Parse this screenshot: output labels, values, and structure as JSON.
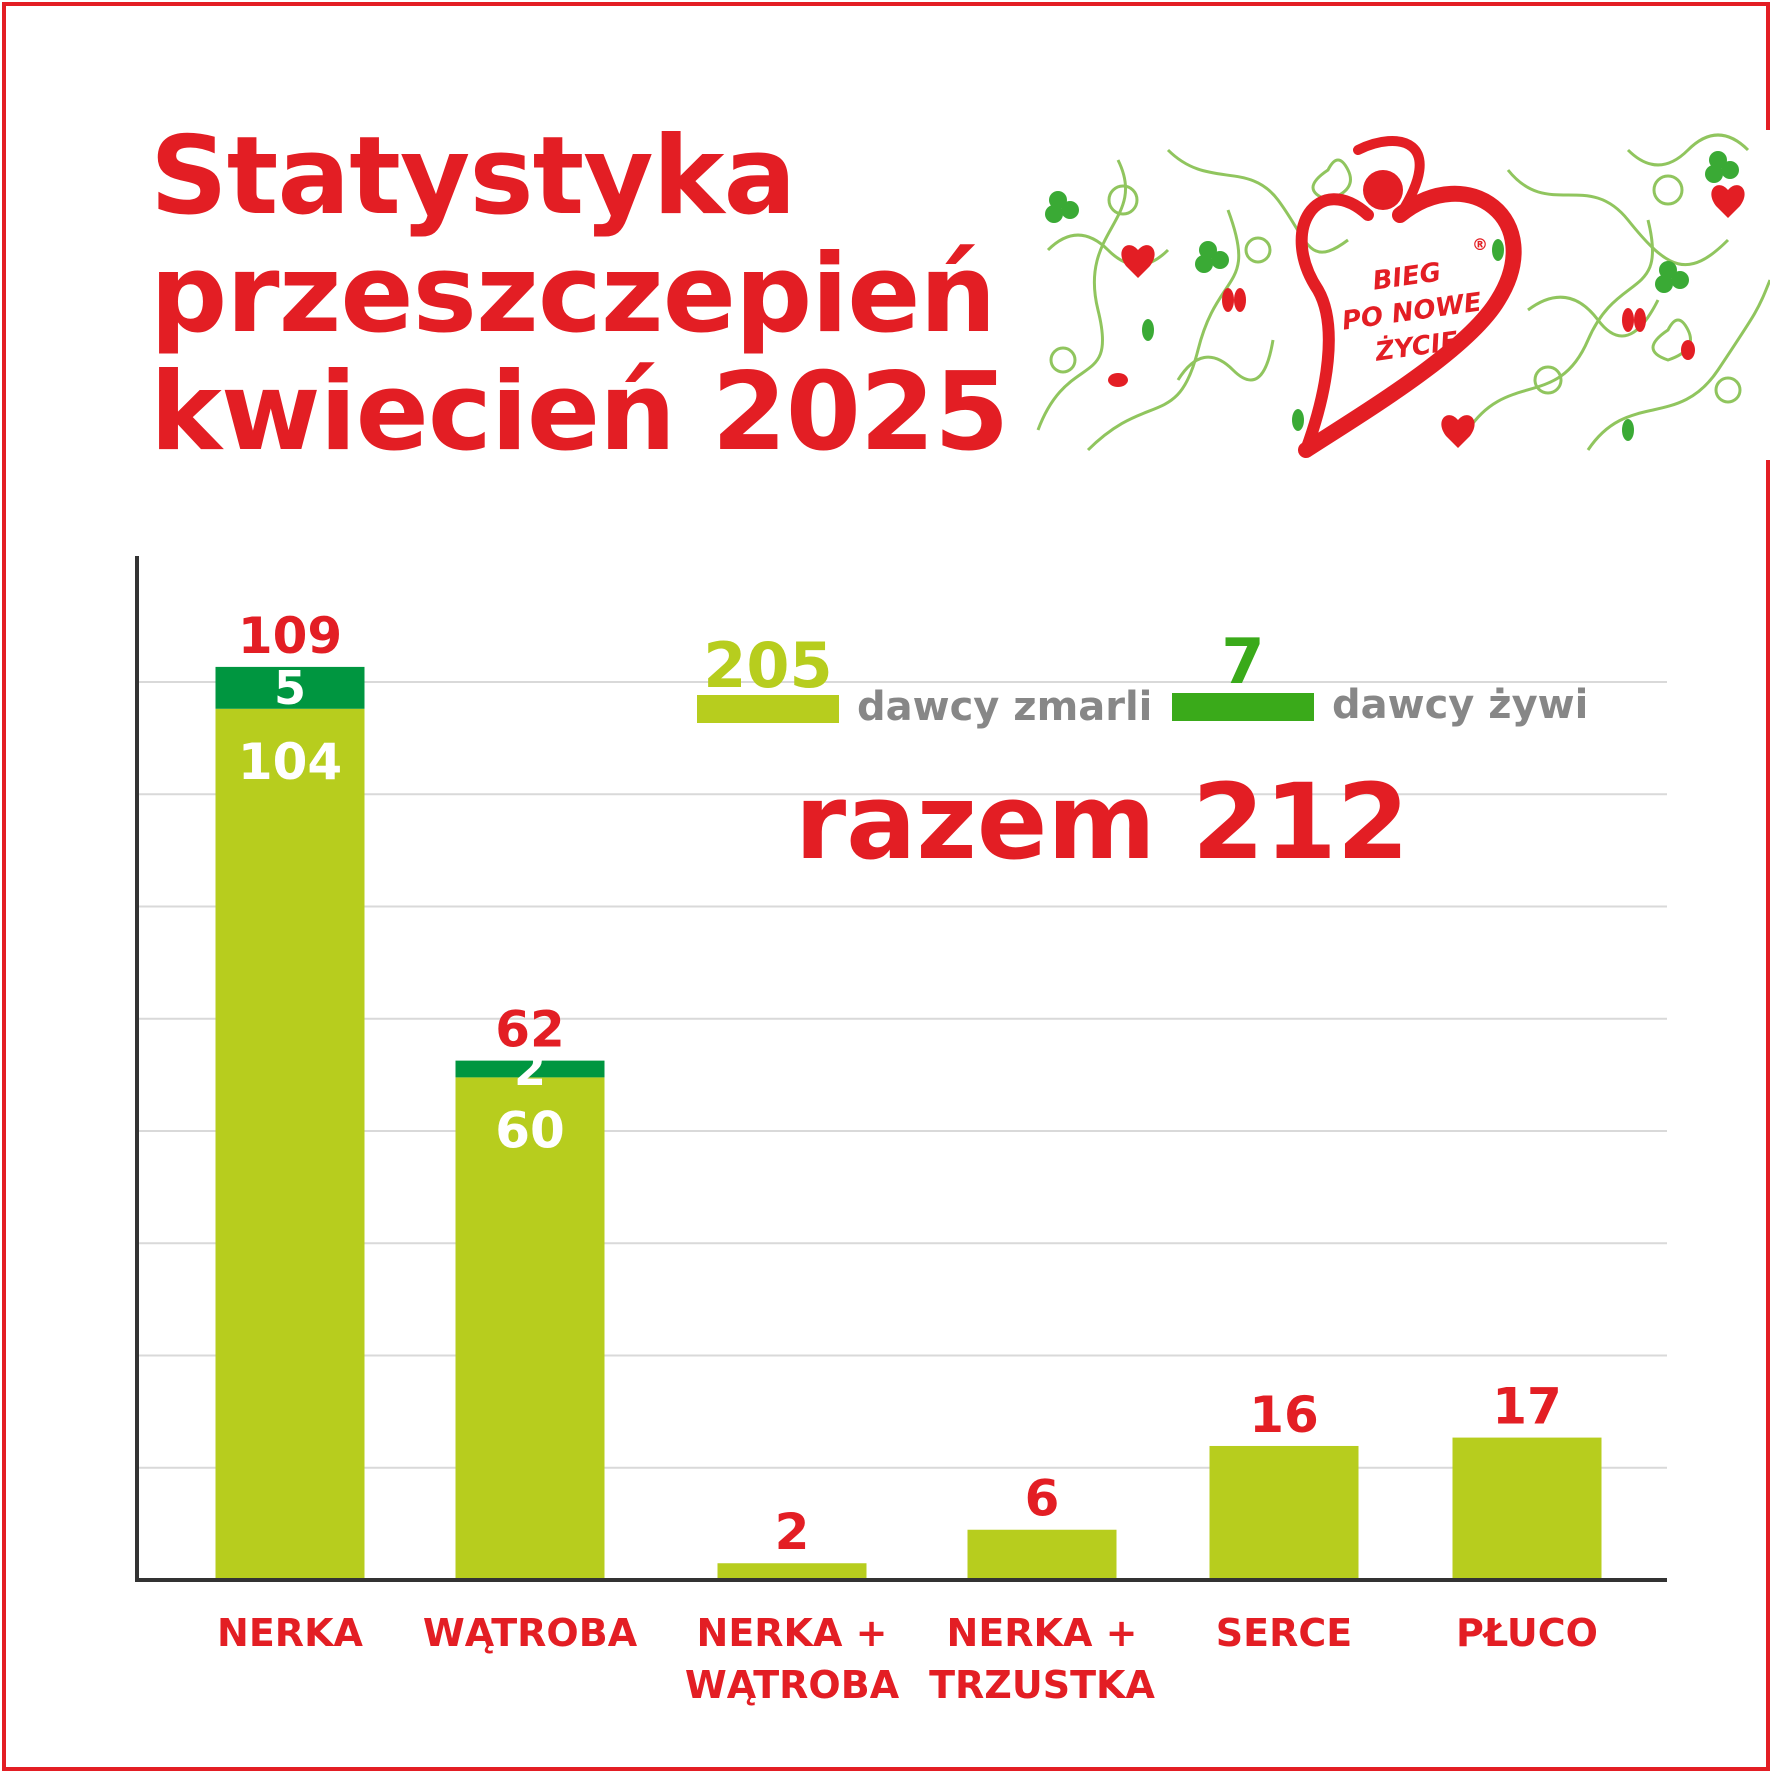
{
  "title": {
    "line1": "Statystyka",
    "line2": "przeszczepień",
    "line3": "kwiecień 2025"
  },
  "logo": {
    "line1": "BIEG",
    "line2": "PO NOWE",
    "line3": "ŻYCIE",
    "mark": "®"
  },
  "colors": {
    "red": "#e31e24",
    "deceased": "#b7cd1e",
    "living": "#009640",
    "legend_living": "#3aaa1a",
    "grid": "#d9d9d9",
    "axis": "#333333",
    "legend_text": "#878787"
  },
  "legend": {
    "deceased_value": "205",
    "deceased_label": "dawcy zmarli",
    "living_value": "7",
    "living_label": "dawcy żywi"
  },
  "total": "razem 212",
  "chart_data": {
    "type": "bar",
    "stacked": true,
    "categories": [
      [
        "NERKA"
      ],
      [
        "WĄTROBA"
      ],
      [
        "NERKA +",
        "WĄTROBA"
      ],
      [
        "NERKA +",
        "TRZUSTKA"
      ],
      [
        "SERCE"
      ],
      [
        "PŁUCO"
      ]
    ],
    "series": [
      {
        "name": "dawcy zmarli",
        "values": [
          104,
          60,
          2,
          6,
          16,
          17
        ]
      },
      {
        "name": "dawcy żywi",
        "values": [
          5,
          2,
          0,
          0,
          0,
          0
        ]
      }
    ],
    "totals": [
      109,
      62,
      2,
      6,
      16,
      17
    ],
    "ylim": [
      0,
      122
    ],
    "grid": true,
    "gridlines": 8
  }
}
